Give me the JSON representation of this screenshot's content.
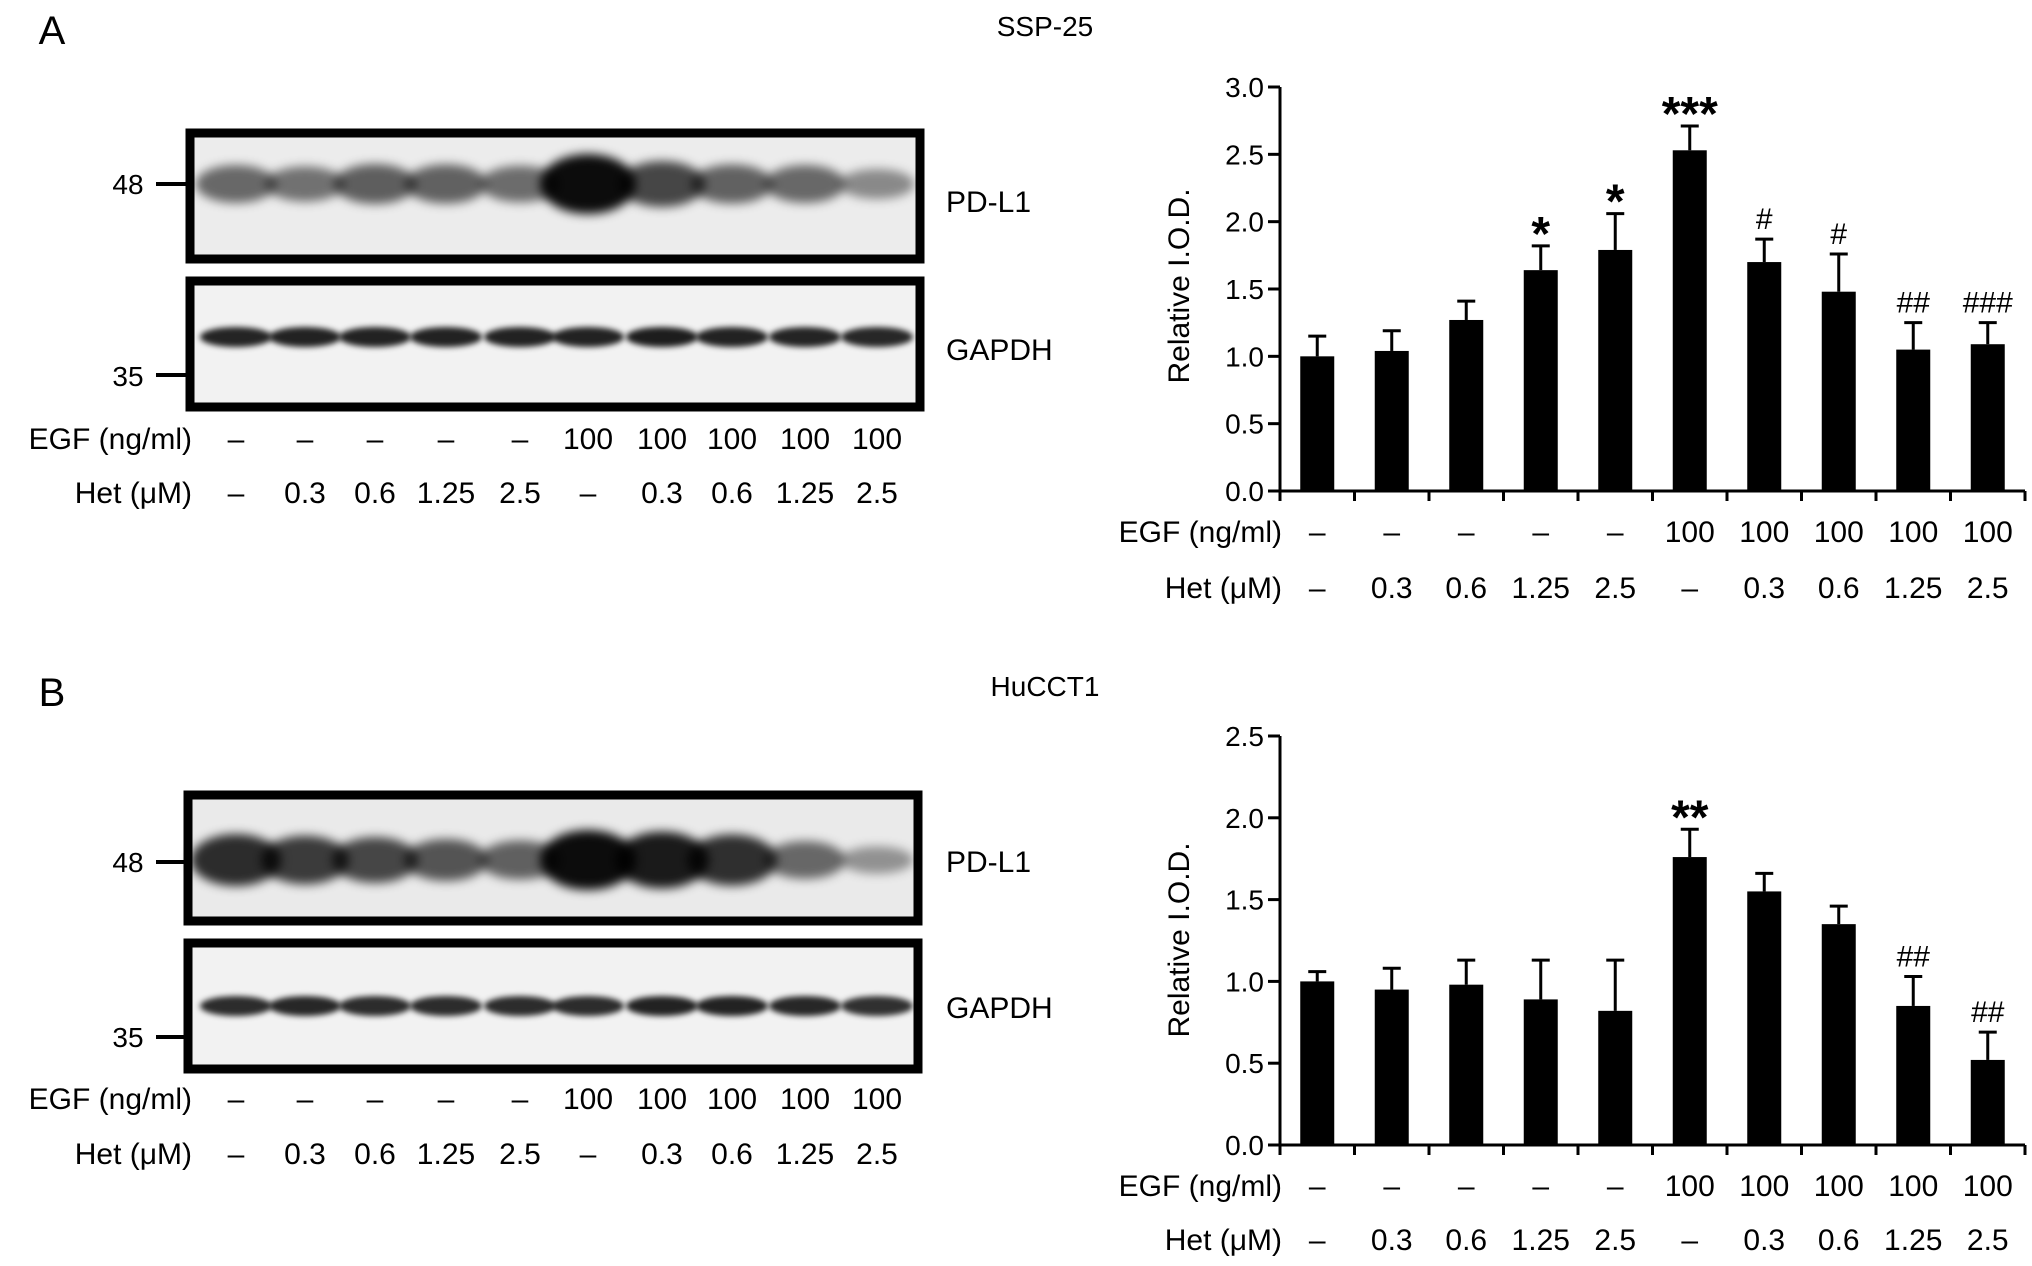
{
  "panels": [
    {
      "letter": "A",
      "cell_line": "SSP-25",
      "blot": {
        "markers": [
          "48",
          "35"
        ],
        "bands": [
          "PD-L1",
          "GAPDH"
        ]
      },
      "treatments": {
        "egf_label": "EGF (ng/ml)",
        "het_label": "Het (μM)",
        "egf": [
          "–",
          "–",
          "–",
          "–",
          "–",
          "100",
          "100",
          "100",
          "100",
          "100"
        ],
        "het": [
          "–",
          "0.3",
          "0.6",
          "1.25",
          "2.5",
          "–",
          "0.3",
          "0.6",
          "1.25",
          "2.5"
        ]
      },
      "chart_data": {
        "type": "bar",
        "ylabel": "Relative I.O.D.",
        "ylim": [
          0,
          3.0
        ],
        "yticks": [
          "0.0",
          "0.5",
          "1.0",
          "1.5",
          "2.0",
          "2.5",
          "3.0"
        ],
        "values": [
          1.0,
          1.04,
          1.27,
          1.64,
          1.79,
          2.53,
          1.7,
          1.48,
          1.05,
          1.09
        ],
        "errors": [
          0.15,
          0.15,
          0.14,
          0.18,
          0.27,
          0.18,
          0.17,
          0.28,
          0.2,
          0.16
        ],
        "annotations": [
          "",
          "",
          "",
          "*",
          "*",
          "***",
          "#",
          "#",
          "##",
          "###"
        ]
      }
    },
    {
      "letter": "B",
      "cell_line": "HuCCT1",
      "blot": {
        "markers": [
          "48",
          "35"
        ],
        "bands": [
          "PD-L1",
          "GAPDH"
        ]
      },
      "treatments": {
        "egf_label": "EGF (ng/ml)",
        "het_label": "Het (μM)",
        "egf": [
          "–",
          "–",
          "–",
          "–",
          "–",
          "100",
          "100",
          "100",
          "100",
          "100"
        ],
        "het": [
          "–",
          "0.3",
          "0.6",
          "1.25",
          "2.5",
          "–",
          "0.3",
          "0.6",
          "1.25",
          "2.5"
        ]
      },
      "chart_data": {
        "type": "bar",
        "ylabel": "Relative I.O.D.",
        "ylim": [
          0,
          2.5
        ],
        "yticks": [
          "0.0",
          "0.5",
          "1.0",
          "1.5",
          "2.0",
          "2.5"
        ],
        "values": [
          1.0,
          0.95,
          0.98,
          0.89,
          0.82,
          1.76,
          1.55,
          1.35,
          0.85,
          0.52
        ],
        "errors": [
          0.06,
          0.13,
          0.15,
          0.24,
          0.31,
          0.17,
          0.11,
          0.11,
          0.18,
          0.17
        ],
        "annotations": [
          "",
          "",
          "",
          "",
          "",
          "**",
          "",
          "",
          "##",
          "##"
        ]
      }
    }
  ]
}
